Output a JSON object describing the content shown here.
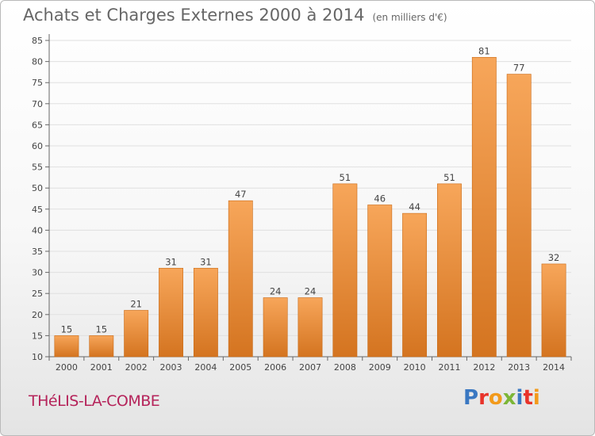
{
  "header": {
    "title": "Achats et Charges Externes 2000 à 2014",
    "unit": "(en milliers d'€)"
  },
  "place_name": "THéLIS-LA-COMBE",
  "logo": {
    "text": "Proxiti",
    "letter_colors": [
      "#3a78c2",
      "#e8332a",
      "#f29a1b",
      "#7cb637",
      "#3a78c2",
      "#e8332a",
      "#f29a1b"
    ]
  },
  "colors": {
    "bar_light": "#f7a65a",
    "bar_dark": "#d47420",
    "axis": "#666666",
    "grid": "#e0e0e0",
    "place": "#b5235a"
  },
  "chart_data": {
    "type": "bar",
    "title": "Achats et Charges Externes 2000 à 2014",
    "subtitle": "(en milliers d'€)",
    "categories": [
      "2000",
      "2001",
      "2002",
      "2003",
      "2004",
      "2005",
      "2006",
      "2007",
      "2008",
      "2009",
      "2010",
      "2011",
      "2012",
      "2013",
      "2014"
    ],
    "values": [
      15,
      15,
      21,
      31,
      31,
      47,
      24,
      24,
      51,
      46,
      44,
      51,
      81,
      77,
      32
    ],
    "ylim": [
      10,
      85
    ],
    "yticks": [
      10,
      15,
      20,
      25,
      30,
      35,
      40,
      45,
      50,
      55,
      60,
      65,
      70,
      75,
      80,
      85
    ],
    "grid": true,
    "data_labels": true
  }
}
